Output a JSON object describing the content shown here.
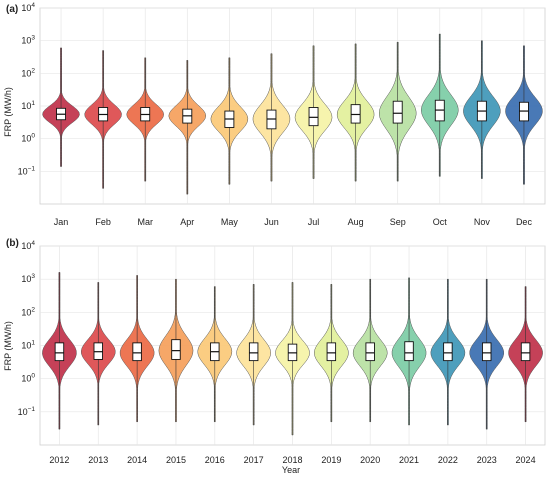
{
  "chart_data": [
    {
      "type": "violin",
      "panel_label": "(a)",
      "ylabel": "FRP (MW/h)",
      "xlabel": "",
      "yscale": "log",
      "ylim": [
        0.01,
        10000
      ],
      "yticks": [
        {
          "value": 0.1,
          "base": "10",
          "exp": "−1"
        },
        {
          "value": 1,
          "base": "10",
          "exp": "0"
        },
        {
          "value": 10,
          "base": "10",
          "exp": "1"
        },
        {
          "value": 100,
          "base": "10",
          "exp": "2"
        },
        {
          "value": 1000,
          "base": "10",
          "exp": "3"
        },
        {
          "value": 10000,
          "base": "10",
          "exp": "4"
        }
      ],
      "grid": true,
      "categories": [
        "Jan",
        "Feb",
        "Mar",
        "Apr",
        "May",
        "Jun",
        "Jul",
        "Aug",
        "Sep",
        "Oct",
        "Nov",
        "Dec"
      ],
      "colors": [
        "#c0314a",
        "#dc4a4c",
        "#ec6a45",
        "#f5a05b",
        "#fbc977",
        "#fde39a",
        "#f5f3a6",
        "#e2f09a",
        "#b7e1a2",
        "#7ccca5",
        "#3f97b7",
        "#3a6eb0"
      ],
      "stats": [
        {
          "min": 0.14,
          "q1": 3.8,
          "median": 5.6,
          "q3": 8.5,
          "max": 600
        },
        {
          "min": 0.03,
          "q1": 3.5,
          "median": 5.5,
          "q3": 9.0,
          "max": 500
        },
        {
          "min": 0.05,
          "q1": 3.5,
          "median": 5.5,
          "q3": 9.0,
          "max": 300
        },
        {
          "min": 0.02,
          "q1": 3.0,
          "median": 5.0,
          "q3": 8.0,
          "max": 250
        },
        {
          "min": 0.04,
          "q1": 2.2,
          "median": 4.0,
          "q3": 7.0,
          "max": 300
        },
        {
          "min": 0.05,
          "q1": 2.0,
          "median": 4.0,
          "q3": 7.5,
          "max": 400
        },
        {
          "min": 0.06,
          "q1": 2.5,
          "median": 4.5,
          "q3": 9.0,
          "max": 700
        },
        {
          "min": 0.05,
          "q1": 3.0,
          "median": 5.5,
          "q3": 11.0,
          "max": 800
        },
        {
          "min": 0.05,
          "q1": 3.0,
          "median": 6.0,
          "q3": 14.0,
          "max": 900
        },
        {
          "min": 0.07,
          "q1": 3.5,
          "median": 7.5,
          "q3": 15.0,
          "max": 1600
        },
        {
          "min": 0.06,
          "q1": 3.5,
          "median": 7.0,
          "q3": 14.0,
          "max": 1000
        },
        {
          "min": 0.04,
          "q1": 3.5,
          "median": 7.0,
          "q3": 13.0,
          "max": 700
        }
      ]
    },
    {
      "type": "violin",
      "panel_label": "(b)",
      "ylabel": "FRP (MW/h)",
      "xlabel": "Year",
      "yscale": "log",
      "ylim": [
        0.01,
        10000
      ],
      "yticks": [
        {
          "value": 0.1,
          "base": "10",
          "exp": "−1"
        },
        {
          "value": 1,
          "base": "10",
          "exp": "0"
        },
        {
          "value": 10,
          "base": "10",
          "exp": "1"
        },
        {
          "value": 100,
          "base": "10",
          "exp": "2"
        },
        {
          "value": 1000,
          "base": "10",
          "exp": "3"
        },
        {
          "value": 10000,
          "base": "10",
          "exp": "4"
        }
      ],
      "grid": true,
      "categories": [
        "2012",
        "2013",
        "2014",
        "2015",
        "2016",
        "2017",
        "2018",
        "2019",
        "2020",
        "2021",
        "2022",
        "2023",
        "2024"
      ],
      "colors": [
        "#c0314a",
        "#dc4a4c",
        "#ec6a45",
        "#f5a05b",
        "#fbc977",
        "#fde39a",
        "#f5f3a6",
        "#e2f09a",
        "#b7e1a2",
        "#7ccca5",
        "#3f97b7",
        "#3a6eb0",
        "#c0314a"
      ],
      "stats": [
        {
          "min": 0.03,
          "q1": 3.5,
          "median": 6.0,
          "q3": 12.0,
          "max": 1600
        },
        {
          "min": 0.04,
          "q1": 3.8,
          "median": 6.5,
          "q3": 12.0,
          "max": 800
        },
        {
          "min": 0.05,
          "q1": 3.5,
          "median": 6.0,
          "q3": 12.0,
          "max": 1300
        },
        {
          "min": 0.05,
          "q1": 3.8,
          "median": 7.0,
          "q3": 15.0,
          "max": 1000
        },
        {
          "min": 0.05,
          "q1": 3.5,
          "median": 6.5,
          "q3": 12.0,
          "max": 600
        },
        {
          "min": 0.04,
          "q1": 3.5,
          "median": 6.0,
          "q3": 12.0,
          "max": 700
        },
        {
          "min": 0.02,
          "q1": 3.5,
          "median": 6.0,
          "q3": 11.0,
          "max": 800
        },
        {
          "min": 0.05,
          "q1": 3.5,
          "median": 6.0,
          "q3": 12.0,
          "max": 700
        },
        {
          "min": 0.05,
          "q1": 3.5,
          "median": 6.0,
          "q3": 12.0,
          "max": 1000
        },
        {
          "min": 0.04,
          "q1": 3.5,
          "median": 6.0,
          "q3": 13.0,
          "max": 1100
        },
        {
          "min": 0.04,
          "q1": 3.5,
          "median": 6.0,
          "q3": 12.0,
          "max": 1000
        },
        {
          "min": 0.03,
          "q1": 3.5,
          "median": 6.0,
          "q3": 12.0,
          "max": 1000
        },
        {
          "min": 0.05,
          "q1": 3.5,
          "median": 6.0,
          "q3": 12.0,
          "max": 600
        }
      ]
    }
  ]
}
